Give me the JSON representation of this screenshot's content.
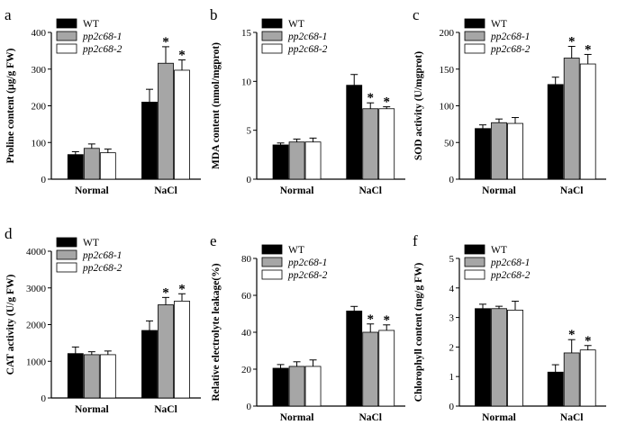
{
  "legend_labels": [
    "WT",
    "pp2c68-1",
    "pp2c68-2"
  ],
  "series_colors": [
    "#000000",
    "#a6a6a6",
    "#ffffff"
  ],
  "chart_data": [
    {
      "type": "bar",
      "letter": "a",
      "ylabel": "Proline content (μg/g FW)",
      "categories": [
        "Normal",
        "NaCl"
      ],
      "ylim": [
        0,
        400
      ],
      "yticks": [
        0,
        100,
        200,
        300,
        400
      ],
      "series": [
        {
          "name": "WT",
          "values": [
            67,
            210
          ],
          "errors": [
            8,
            35
          ]
        },
        {
          "name": "pp2c68-1",
          "values": [
            84,
            316
          ],
          "errors": [
            12,
            45
          ]
        },
        {
          "name": "pp2c68-2",
          "values": [
            72,
            297
          ],
          "errors": [
            10,
            28
          ]
        }
      ],
      "significance": [
        [
          "",
          ""
        ],
        [
          "",
          "*"
        ],
        [
          "",
          "*"
        ]
      ]
    },
    {
      "type": "bar",
      "letter": "b",
      "ylabel": "MDA content (nmol/mgprot)",
      "categories": [
        "Normal",
        "NaCl"
      ],
      "ylim": [
        0,
        15
      ],
      "yticks": [
        0,
        5,
        10,
        15
      ],
      "series": [
        {
          "name": "WT",
          "values": [
            3.5,
            9.6
          ],
          "errors": [
            0.2,
            1.1
          ]
        },
        {
          "name": "pp2c68-1",
          "values": [
            3.8,
            7.2
          ],
          "errors": [
            0.3,
            0.6
          ]
        },
        {
          "name": "pp2c68-2",
          "values": [
            3.8,
            7.2
          ],
          "errors": [
            0.4,
            0.2
          ]
        }
      ],
      "significance": [
        [
          "",
          ""
        ],
        [
          "",
          "*"
        ],
        [
          "",
          "*"
        ]
      ]
    },
    {
      "type": "bar",
      "letter": "c",
      "ylabel": "SOD activity (U/mgprot)",
      "categories": [
        "Normal",
        "NaCl"
      ],
      "ylim": [
        0,
        200
      ],
      "yticks": [
        0,
        50,
        100,
        150,
        200
      ],
      "series": [
        {
          "name": "WT",
          "values": [
            69,
            129
          ],
          "errors": [
            5,
            10
          ]
        },
        {
          "name": "pp2c68-1",
          "values": [
            77,
            165
          ],
          "errors": [
            5,
            16
          ]
        },
        {
          "name": "pp2c68-2",
          "values": [
            76,
            157
          ],
          "errors": [
            8,
            13
          ]
        }
      ],
      "significance": [
        [
          "",
          ""
        ],
        [
          "",
          "*"
        ],
        [
          "",
          "*"
        ]
      ]
    },
    {
      "type": "bar",
      "letter": "d",
      "ylabel": "CAT activity (U/g FW)",
      "categories": [
        "Normal",
        "NaCl"
      ],
      "ylim": [
        0,
        4000
      ],
      "yticks": [
        0,
        1000,
        2000,
        3000,
        4000
      ],
      "series": [
        {
          "name": "WT",
          "values": [
            1210,
            1840
          ],
          "errors": [
            180,
            260
          ]
        },
        {
          "name": "pp2c68-1",
          "values": [
            1180,
            2540
          ],
          "errors": [
            80,
            200
          ]
        },
        {
          "name": "pp2c68-2",
          "values": [
            1180,
            2640
          ],
          "errors": [
            100,
            200
          ]
        }
      ],
      "significance": [
        [
          "",
          ""
        ],
        [
          "",
          "*"
        ],
        [
          "",
          "*"
        ]
      ]
    },
    {
      "type": "bar",
      "letter": "e",
      "ylabel": "Relative electrolyte leakage(%)",
      "categories": [
        "Normal",
        "NaCl"
      ],
      "ylim": [
        0,
        80
      ],
      "yticks": [
        0,
        20,
        40,
        60,
        80
      ],
      "series": [
        {
          "name": "WT",
          "values": [
            20.5,
            51.5
          ],
          "errors": [
            2,
            2.5
          ]
        },
        {
          "name": "pp2c68-1",
          "values": [
            21.5,
            40
          ],
          "errors": [
            2.5,
            4.5
          ]
        },
        {
          "name": "pp2c68-2",
          "values": [
            21.5,
            41
          ],
          "errors": [
            3.5,
            3
          ]
        }
      ],
      "significance": [
        [
          "",
          ""
        ],
        [
          "",
          "*"
        ],
        [
          "",
          "*"
        ]
      ]
    },
    {
      "type": "bar",
      "letter": "f",
      "ylabel": "Chlorophyll content (mg/g FW)",
      "categories": [
        "Normal",
        "NaCl"
      ],
      "ylim": [
        0,
        5
      ],
      "yticks": [
        0,
        1,
        2,
        3,
        4,
        5
      ],
      "series": [
        {
          "name": "WT",
          "values": [
            3.3,
            1.15
          ],
          "errors": [
            0.15,
            0.25
          ]
        },
        {
          "name": "pp2c68-1",
          "values": [
            3.3,
            1.8
          ],
          "errors": [
            0.08,
            0.45
          ]
        },
        {
          "name": "pp2c68-2",
          "values": [
            3.25,
            1.9
          ],
          "errors": [
            0.3,
            0.15
          ]
        }
      ],
      "significance": [
        [
          "",
          ""
        ],
        [
          "",
          "*"
        ],
        [
          "",
          "*"
        ]
      ]
    }
  ]
}
